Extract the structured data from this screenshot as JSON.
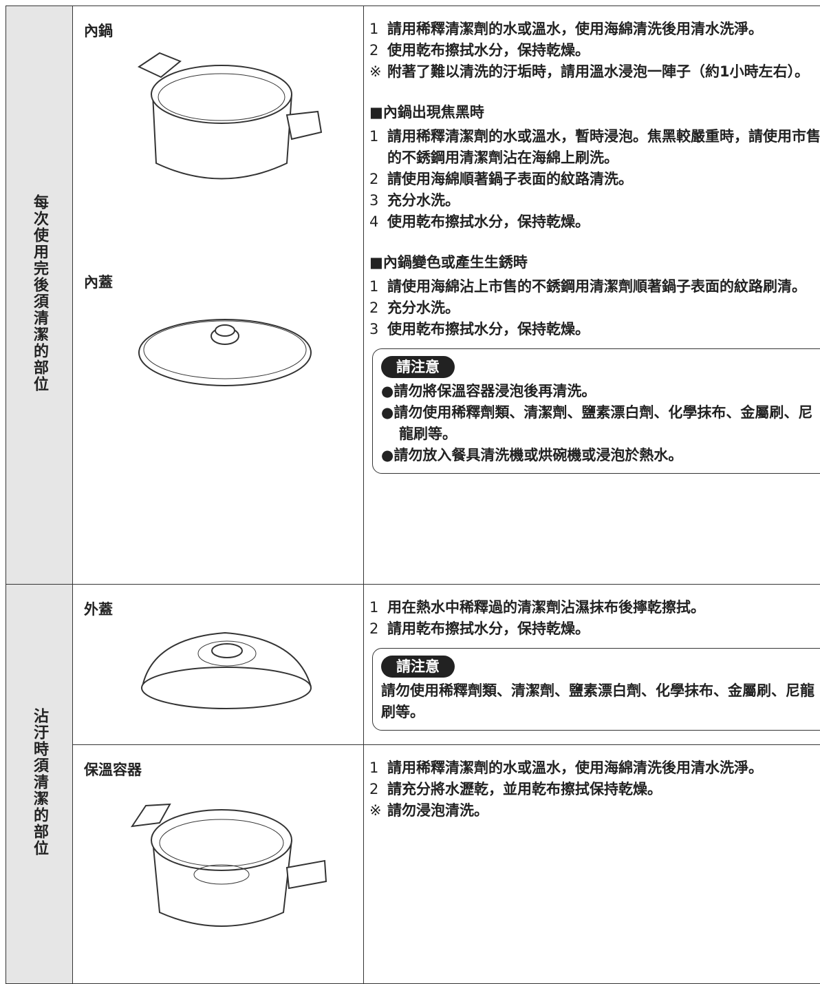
{
  "sections": [
    {
      "label": "每次使用完後須清潔的部位",
      "rows": [
        {
          "parts": [
            "內鍋",
            "內蓋"
          ],
          "groups": [
            {
              "steps": [
                {
                  "num": "1",
                  "text": "請用稀釋清潔劑的水或溫水，使用海綿清洗後用清水洗淨。"
                },
                {
                  "num": "2",
                  "text": "使用乾布擦拭水分，保持乾燥。"
                }
              ],
              "note": {
                "mark": "※",
                "text": "附著了難以清洗的汙垢時，請用溫水浸泡一陣子（約1小時左右）。"
              }
            },
            {
              "heading": "■內鍋出現焦黑時",
              "steps": [
                {
                  "num": "1",
                  "text": "請用稀釋清潔劑的水或溫水，暫時浸泡。焦黑較嚴重時，請使用市售的不銹鋼用清潔劑沾在海綿上刷洗。"
                },
                {
                  "num": "2",
                  "text": "請使用海綿順著鍋子表面的紋路清洗。"
                },
                {
                  "num": "3",
                  "text": "充分水洗。"
                },
                {
                  "num": "4",
                  "text": "使用乾布擦拭水分，保持乾燥。"
                }
              ]
            },
            {
              "heading": "■內鍋變色或產生生銹時",
              "steps": [
                {
                  "num": "1",
                  "text": "請使用海綿沾上市售的不銹鋼用清潔劑順著鍋子表面的紋路刷清。"
                },
                {
                  "num": "2",
                  "text": "充分水洗。"
                },
                {
                  "num": "3",
                  "text": "使用乾布擦拭水分，保持乾燥。"
                }
              ]
            }
          ],
          "notice": {
            "title": "請注意",
            "items": [
              "●請勿將保溫容器浸泡後再清洗。",
              "●請勿使用稀釋劑類、清潔劑、鹽素漂白劑、化學抹布、金屬刷、尼龍刷等。",
              "●請勿放入餐具清洗機或烘碗機或浸泡於熱水。"
            ]
          }
        }
      ]
    },
    {
      "label": "沾汙時須清潔的部位",
      "rows": [
        {
          "parts": [
            "外蓋"
          ],
          "groups": [
            {
              "steps": [
                {
                  "num": "1",
                  "text": "用在熱水中稀釋過的清潔劑沾濕抹布後擰乾擦拭。"
                },
                {
                  "num": "2",
                  "text": "請用乾布擦拭水分，保持乾燥。"
                }
              ]
            }
          ],
          "notice": {
            "title": "請注意",
            "text": "請勿使用稀釋劑類、清潔劑、鹽素漂白劑、化學抹布、金屬刷、尼龍刷等。"
          }
        },
        {
          "parts": [
            "保溫容器"
          ],
          "groups": [
            {
              "steps": [
                {
                  "num": "1",
                  "text": "請用稀釋清潔劑的水或溫水，使用海綿清洗後用清水洗淨。"
                },
                {
                  "num": "2",
                  "text": "請充分將水瀝乾，並用乾布擦拭保持乾燥。"
                }
              ],
              "note": {
                "mark": "※",
                "text": "請勿浸泡清洗。"
              }
            }
          ]
        }
      ]
    }
  ]
}
